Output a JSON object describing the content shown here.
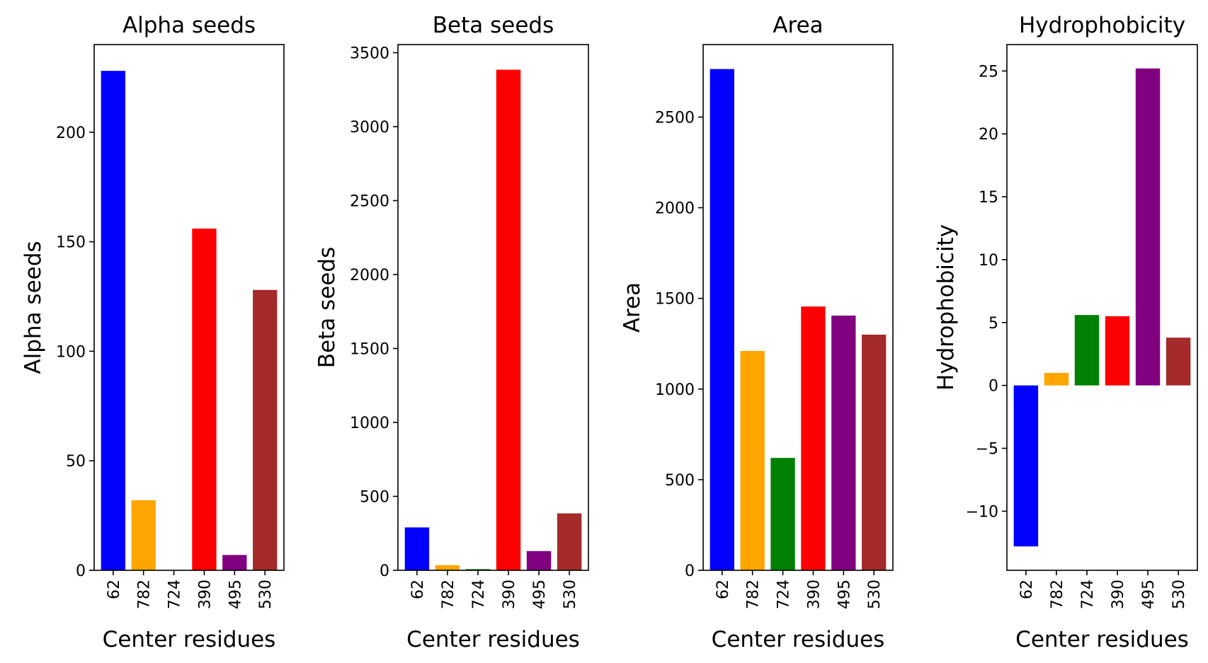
{
  "chart_data": [
    {
      "type": "bar",
      "title": "Alpha seeds",
      "xlabel": "Center residues",
      "ylabel": "Alpha seeds",
      "categories": [
        "62",
        "782",
        "724",
        "390",
        "495",
        "530"
      ],
      "values": [
        228,
        32,
        0,
        156,
        7,
        128
      ],
      "colors": [
        "#0000ff",
        "#ffa500",
        "#008000",
        "#ff0000",
        "#800080",
        "#a52a2a"
      ],
      "ylim": [
        0,
        240
      ],
      "yticks": [
        "0",
        "50",
        "100",
        "150",
        "200"
      ],
      "ytick_values": [
        0,
        50,
        100,
        150,
        200
      ],
      "grid": false
    },
    {
      "type": "bar",
      "title": "Beta seeds",
      "xlabel": "Center residues",
      "ylabel": "Beta seeds",
      "categories": [
        "62",
        "782",
        "724",
        "390",
        "495",
        "530"
      ],
      "values": [
        290,
        35,
        8,
        3385,
        130,
        385
      ],
      "colors": [
        "#0000ff",
        "#ffa500",
        "#008000",
        "#ff0000",
        "#800080",
        "#a52a2a"
      ],
      "ylim": [
        0,
        3555
      ],
      "yticks": [
        "0",
        "500",
        "1000",
        "1500",
        "2000",
        "2500",
        "3000",
        "3500"
      ],
      "ytick_values": [
        0,
        500,
        1000,
        1500,
        2000,
        2500,
        3000,
        3500
      ],
      "grid": false
    },
    {
      "type": "bar",
      "title": "Area",
      "xlabel": "Center residues",
      "ylabel": "Area",
      "categories": [
        "62",
        "782",
        "724",
        "390",
        "495",
        "530"
      ],
      "values": [
        2765,
        1210,
        620,
        1455,
        1405,
        1300
      ],
      "colors": [
        "#0000ff",
        "#ffa500",
        "#008000",
        "#ff0000",
        "#800080",
        "#a52a2a"
      ],
      "ylim": [
        0,
        2900
      ],
      "yticks": [
        "0",
        "500",
        "1000",
        "1500",
        "2000",
        "2500"
      ],
      "ytick_values": [
        0,
        500,
        1000,
        1500,
        2000,
        2500
      ],
      "grid": false
    },
    {
      "type": "bar",
      "title": "Hydrophobicity",
      "xlabel": "Center residues",
      "ylabel": "Hydrophobicity",
      "categories": [
        "62",
        "782",
        "724",
        "390",
        "495",
        "530"
      ],
      "values": [
        -12.8,
        1.0,
        5.6,
        5.5,
        25.2,
        3.8
      ],
      "colors": [
        "#0000ff",
        "#ffa500",
        "#008000",
        "#ff0000",
        "#800080",
        "#a52a2a"
      ],
      "ylim": [
        -14.7,
        27.1
      ],
      "yticks": [
        "−10",
        "−5",
        "0",
        "5",
        "10",
        "15",
        "20",
        "25"
      ],
      "ytick_values": [
        -10,
        -5,
        0,
        5,
        10,
        15,
        20,
        25
      ],
      "grid": false
    }
  ]
}
